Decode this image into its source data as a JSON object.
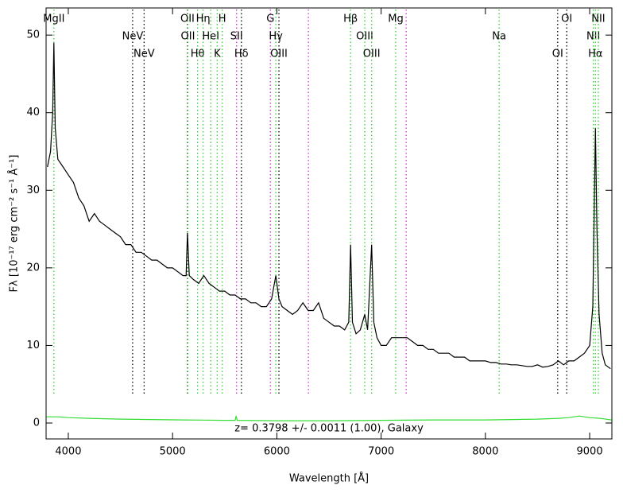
{
  "chart_data": {
    "type": "line",
    "xlabel": "Wavelength [Å]",
    "ylabel": "Fλ [10⁻¹⁷ erg cm⁻² s⁻¹ Å⁻¹]",
    "annotation": "z= 0.3798 +/- 0.0011 (1.00), Galaxy",
    "xlim": [
      3787,
      9213
    ],
    "xticks": [
      4000,
      5000,
      6000,
      7000,
      8000,
      9000
    ],
    "ylim": [
      -2.05,
      53.5
    ],
    "yticks": [
      0,
      10,
      20,
      30,
      40,
      50
    ],
    "series": [
      {
        "color": "#000000",
        "x": [
          3800,
          3830,
          3850,
          3862,
          3875,
          3900,
          3950,
          4000,
          4050,
          4100,
          4150,
          4200,
          4250,
          4300,
          4350,
          4400,
          4450,
          4500,
          4550,
          4600,
          4650,
          4700,
          4750,
          4800,
          4850,
          4900,
          4950,
          5000,
          5050,
          5100,
          5130,
          5143,
          5160,
          5200,
          5250,
          5300,
          5350,
          5400,
          5450,
          5500,
          5550,
          5600,
          5650,
          5700,
          5750,
          5800,
          5850,
          5900,
          5950,
          5990,
          6020,
          6050,
          6100,
          6150,
          6200,
          6250,
          6300,
          6350,
          6400,
          6450,
          6500,
          6550,
          6600,
          6650,
          6690,
          6707,
          6725,
          6760,
          6800,
          6843,
          6870,
          6909,
          6930,
          6960,
          7000,
          7050,
          7100,
          7150,
          7200,
          7250,
          7300,
          7350,
          7400,
          7450,
          7500,
          7550,
          7600,
          7650,
          7700,
          7750,
          7800,
          7850,
          7900,
          7950,
          8000,
          8050,
          8100,
          8150,
          8200,
          8250,
          8300,
          8350,
          8400,
          8450,
          8500,
          8550,
          8600,
          8650,
          8700,
          8750,
          8800,
          8850,
          8900,
          8950,
          9000,
          9030,
          9055,
          9070,
          9090,
          9120,
          9150,
          9200
        ],
        "values": [
          33,
          35,
          40,
          49,
          38,
          34,
          33,
          32,
          31,
          29,
          28,
          26,
          27,
          26,
          25.5,
          25,
          24.5,
          24,
          23,
          23,
          22,
          22,
          21.5,
          21,
          21,
          20.5,
          20,
          20,
          19.5,
          19,
          19,
          24.5,
          19,
          18.5,
          18,
          19,
          18,
          17.5,
          17,
          17,
          16.5,
          16.5,
          16,
          16,
          15.5,
          15.5,
          15,
          15,
          16,
          19,
          16,
          15,
          14.5,
          14,
          14.5,
          15.5,
          14.5,
          14.5,
          15.5,
          13.5,
          13,
          12.5,
          12.5,
          12,
          13,
          23,
          13,
          11.5,
          12,
          14,
          12,
          23,
          13,
          11,
          10,
          10,
          11,
          11,
          11,
          11,
          10.5,
          10,
          10,
          9.5,
          9.5,
          9,
          9,
          9,
          8.5,
          8.5,
          8.5,
          8,
          8,
          8,
          8,
          7.8,
          7.8,
          7.6,
          7.6,
          7.5,
          7.5,
          7.4,
          7.3,
          7.3,
          7.5,
          7.2,
          7.3,
          7.5,
          8,
          7.5,
          8,
          8,
          8.5,
          9,
          10,
          15,
          38,
          25,
          14,
          9,
          7.5,
          7
        ]
      },
      {
        "color": "#33dd33",
        "x": [
          3790,
          3900,
          4000,
          4200,
          4500,
          4800,
          5100,
          5500,
          5600,
          5610,
          5620,
          6000,
          6500,
          7000,
          7500,
          8000,
          8500,
          8700,
          8800,
          8900,
          8950,
          9000,
          9100,
          9210
        ],
        "values": [
          0.8,
          0.8,
          0.7,
          0.6,
          0.5,
          0.45,
          0.4,
          0.35,
          0.35,
          0.9,
          0.35,
          0.3,
          0.3,
          0.35,
          0.4,
          0.4,
          0.5,
          0.6,
          0.7,
          0.9,
          0.8,
          0.7,
          0.6,
          0.4
        ]
      }
    ],
    "lines": [
      {
        "x": 3862,
        "label": "MgII",
        "color": "#33cc33"
      },
      {
        "x": 4617,
        "label": "NeV",
        "color": "#000000"
      },
      {
        "x": 4727,
        "label": "NeV",
        "color": "#000000"
      },
      {
        "x": 5143,
        "label": "OII",
        "color": "#000000"
      },
      {
        "x": 5147,
        "label": "OII",
        "color": "#33cc33"
      },
      {
        "x": 5240,
        "label": "Hθ",
        "color": "#33cc33"
      },
      {
        "x": 5293,
        "label": "Hη",
        "color": "#33cc33"
      },
      {
        "x": 5366,
        "label": "HeI",
        "color": "#33cc33"
      },
      {
        "x": 5428,
        "label": "K",
        "color": "#33cc33"
      },
      {
        "x": 5476,
        "label": "H",
        "color": "#33cc33"
      },
      {
        "x": 5614,
        "label": "SII",
        "color": "#cc33cc"
      },
      {
        "x": 5660,
        "label": "Hδ",
        "color": "#000000"
      },
      {
        "x": 5938,
        "label": "G",
        "color": "#cc33cc"
      },
      {
        "x": 5990,
        "label": "Hγ",
        "color": "#33cc33"
      },
      {
        "x": 6020,
        "label": "OIII",
        "color": "#000000"
      },
      {
        "x": 6303,
        "label": null,
        "color": "#cc33cc"
      },
      {
        "x": 6707,
        "label": "Hβ",
        "color": "#33cc33"
      },
      {
        "x": 6843,
        "label": "OIII",
        "color": "#33cc33"
      },
      {
        "x": 6909,
        "label": "OIII",
        "color": "#33cc33"
      },
      {
        "x": 7140,
        "label": "Mg",
        "color": "#33cc33"
      },
      {
        "x": 7240,
        "label": null,
        "color": "#cc33cc"
      },
      {
        "x": 8132,
        "label": "Na",
        "color": "#33cc33"
      },
      {
        "x": 8693,
        "label": "OI",
        "color": "#000000"
      },
      {
        "x": 8780,
        "label": "OI",
        "color": "#000000"
      },
      {
        "x": 9035,
        "label": "NII",
        "color": "#33cc33"
      },
      {
        "x": 9055,
        "label": "Hα",
        "color": "#33cc33"
      },
      {
        "x": 9083,
        "label": "NII",
        "color": "#33cc33"
      }
    ]
  }
}
